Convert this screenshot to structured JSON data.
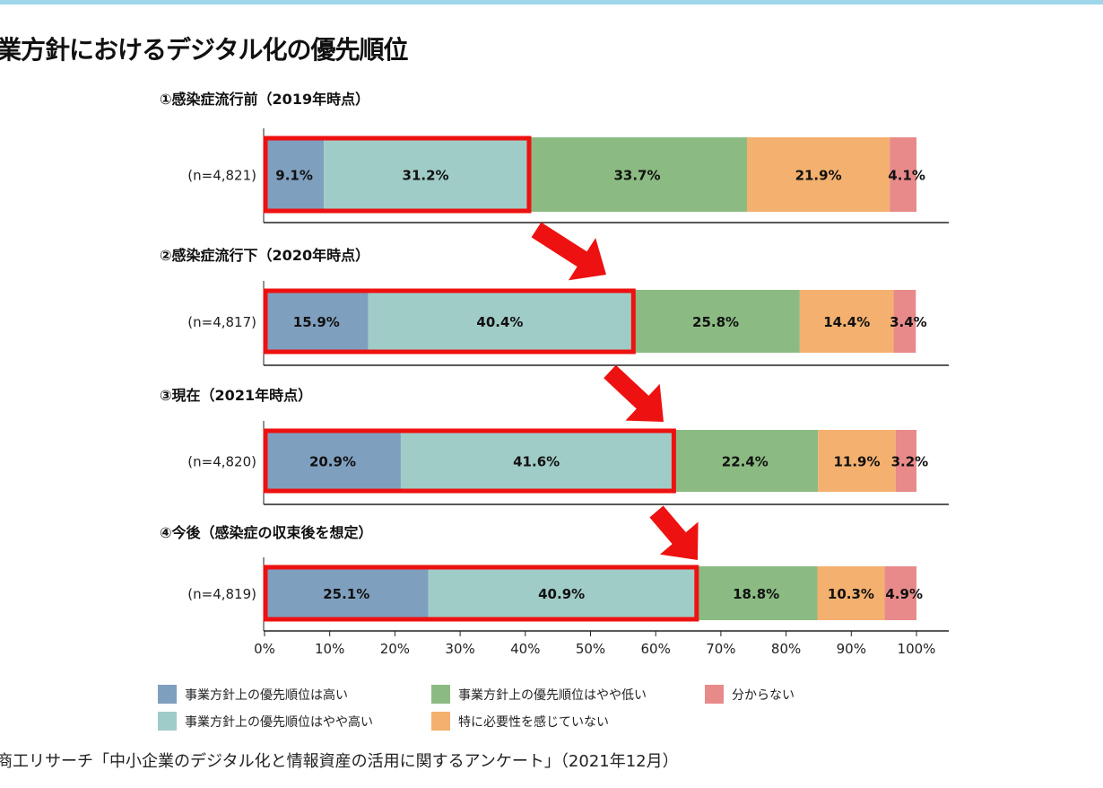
{
  "title": "業方針におけるデジタル化の優先順位",
  "source": "商工リサーチ「中小企業のデジタル化と情報資産の活用に関するアンケート」（2021年12月）",
  "chart_data": {
    "type": "bar",
    "orientation": "horizontal-stacked-100",
    "xlim": [
      0,
      100
    ],
    "x_ticks": [
      "0%",
      "10%",
      "20%",
      "30%",
      "40%",
      "50%",
      "60%",
      "70%",
      "80%",
      "90%",
      "100%"
    ],
    "legend_position": "bottom",
    "series": [
      {
        "name": "事業方針上の優先順位は高い",
        "color": "#7f9fbf"
      },
      {
        "name": "事業方針上の優先順位はやや高い",
        "color": "#a0ccc8"
      },
      {
        "name": "事業方針上の優先順位はやや低い",
        "color": "#8bbb82"
      },
      {
        "name": "特に必要性を感じていない",
        "color": "#f4b06e"
      },
      {
        "name": "分からない",
        "color": "#e88a8a"
      }
    ],
    "panels": [
      {
        "title": "①感染症流行前（2019年時点）",
        "n": "(n=4,821)",
        "values": [
          9.1,
          31.2,
          33.7,
          21.9,
          4.1
        ],
        "labels": [
          "9.1%",
          "31.2%",
          "33.7%",
          "21.9%",
          "4.1%"
        ],
        "highlight_upto": 2
      },
      {
        "title": "②感染症流行下（2020年時点）",
        "n": "(n=4,817)",
        "values": [
          15.9,
          40.4,
          25.8,
          14.4,
          3.4
        ],
        "labels": [
          "15.9%",
          "40.4%",
          "25.8%",
          "14.4%",
          "3.4%"
        ],
        "highlight_upto": 2
      },
      {
        "title": "③現在（2021年時点）",
        "n": "(n=4,820)",
        "values": [
          20.9,
          41.6,
          22.4,
          11.9,
          3.2
        ],
        "labels": [
          "20.9%",
          "41.6%",
          "22.4%",
          "11.9%",
          "3.2%"
        ],
        "highlight_upto": 2
      },
      {
        "title": "④今後（感染症の収束後を想定）",
        "n": "(n=4,819)",
        "values": [
          25.1,
          40.9,
          18.8,
          10.3,
          4.9
        ],
        "labels": [
          "25.1%",
          "40.9%",
          "18.8%",
          "10.3%",
          "4.9%"
        ],
        "highlight_upto": 2
      }
    ],
    "highlight_color": "#ee1111"
  }
}
